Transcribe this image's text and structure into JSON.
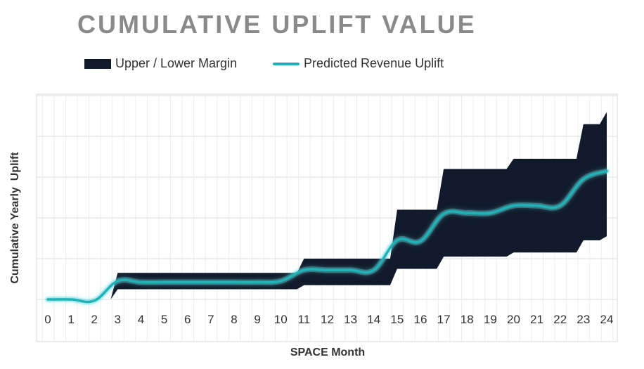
{
  "chart_data": {
    "type": "area",
    "title": "CUMULATIVE UPLIFT VALUE",
    "xlabel": "SPACE Month",
    "ylabel": "Cumulative Yearly  Uplift",
    "x": [
      0,
      1,
      2,
      3,
      4,
      5,
      6,
      7,
      8,
      9,
      10,
      11,
      12,
      13,
      14,
      15,
      16,
      17,
      18,
      19,
      20,
      21,
      22,
      23,
      24
    ],
    "ylim": [
      0,
      5
    ],
    "series": [
      {
        "name": "Upper / Lower Margin",
        "kind": "band",
        "upper": [
          0,
          0,
          0,
          0.65,
          0.65,
          0.65,
          0.65,
          0.65,
          0.65,
          0.65,
          0.65,
          1.0,
          1.0,
          1.0,
          1.0,
          2.2,
          2.2,
          3.2,
          3.2,
          3.2,
          3.45,
          3.45,
          3.45,
          4.3,
          4.6
        ],
        "lower": [
          0,
          0,
          0,
          0.25,
          0.25,
          0.25,
          0.25,
          0.25,
          0.25,
          0.25,
          0.25,
          0.35,
          0.35,
          0.35,
          0.35,
          0.75,
          0.75,
          1.05,
          1.05,
          1.05,
          1.15,
          1.15,
          1.15,
          1.45,
          1.55
        ],
        "color": "#111a2a"
      },
      {
        "name": "Predicted Revenue Uplift",
        "kind": "line",
        "values": [
          0,
          0,
          -0.03,
          0.45,
          0.42,
          0.42,
          0.42,
          0.42,
          0.42,
          0.42,
          0.45,
          0.72,
          0.72,
          0.72,
          0.72,
          1.45,
          1.43,
          2.1,
          2.12,
          2.12,
          2.3,
          2.3,
          2.3,
          2.95,
          3.15
        ],
        "color": "#1fb3b8"
      }
    ],
    "legend": "top",
    "grid": true
  }
}
